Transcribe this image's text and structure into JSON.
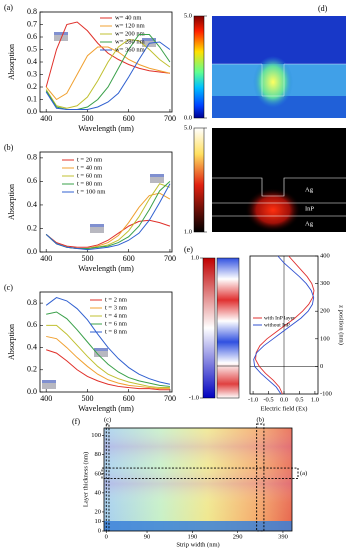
{
  "chart_data": [
    {
      "type": "line",
      "panel_label": "(a)",
      "x_label": "Wavelength (nm)",
      "y_label": "Absorption",
      "x": [
        400,
        425,
        450,
        475,
        500,
        525,
        550,
        575,
        600,
        625,
        650,
        675,
        700
      ],
      "xlim": [
        385,
        705
      ],
      "xticks": [
        400,
        500,
        600,
        700
      ],
      "ylim": [
        0,
        0.8
      ],
      "yticks": [
        {
          "value": 0,
          "label": "0.0"
        },
        0.1,
        0.2,
        0.3,
        0.4,
        0.5,
        0.6,
        0.7,
        0.8
      ],
      "series": [
        {
          "name": "w= 40 nm",
          "color": "#e0302a",
          "values": [
            0.2,
            0.5,
            0.7,
            0.72,
            0.65,
            0.55,
            0.47,
            0.42,
            0.38,
            0.35,
            0.33,
            0.32,
            0.31
          ]
        },
        {
          "name": "w= 120 nm",
          "color": "#f0a030",
          "values": [
            0.2,
            0.1,
            0.15,
            0.3,
            0.45,
            0.52,
            0.52,
            0.48,
            0.42,
            0.38,
            0.35,
            0.33,
            0.31
          ]
        },
        {
          "name": "w= 200 nm",
          "color": "#c0c030",
          "values": [
            0.18,
            0.05,
            0.03,
            0.05,
            0.12,
            0.25,
            0.4,
            0.52,
            0.58,
            0.57,
            0.5,
            0.42,
            0.36
          ]
        },
        {
          "name": "w= 280 nm",
          "color": "#3aa04a",
          "values": [
            0.17,
            0.04,
            0.02,
            0.02,
            0.04,
            0.1,
            0.2,
            0.35,
            0.5,
            0.62,
            0.62,
            0.52,
            0.4
          ]
        },
        {
          "name": "w= 360 nm",
          "color": "#3060d0",
          "values": [
            0.16,
            0.03,
            0.02,
            0.02,
            0.02,
            0.04,
            0.08,
            0.15,
            0.28,
            0.42,
            0.55,
            0.56,
            0.5
          ]
        }
      ]
    },
    {
      "type": "line",
      "panel_label": "(b)",
      "x_label": "Wavelength (nm)",
      "y_label": "Absorption",
      "x": [
        400,
        425,
        450,
        475,
        500,
        525,
        550,
        575,
        600,
        625,
        650,
        675,
        700
      ],
      "xlim": [
        385,
        705
      ],
      "xticks": [
        400,
        500,
        600,
        700
      ],
      "ylim": [
        0,
        0.85
      ],
      "yticks": [
        {
          "value": 0,
          "label": "0.0"
        },
        0.2,
        0.4,
        0.6,
        0.8
      ],
      "series": [
        {
          "name": "t = 20 nm",
          "color": "#e0302a",
          "values": [
            0.15,
            0.08,
            0.05,
            0.04,
            0.04,
            0.06,
            0.1,
            0.16,
            0.22,
            0.26,
            0.27,
            0.25,
            0.22
          ]
        },
        {
          "name": "t = 40 nm",
          "color": "#f0a030",
          "values": [
            0.15,
            0.07,
            0.04,
            0.03,
            0.03,
            0.05,
            0.08,
            0.14,
            0.25,
            0.38,
            0.48,
            0.5,
            0.45
          ]
        },
        {
          "name": "t = 60 nm",
          "color": "#c0c030",
          "values": [
            0.15,
            0.07,
            0.04,
            0.03,
            0.03,
            0.04,
            0.06,
            0.1,
            0.18,
            0.3,
            0.45,
            0.58,
            0.55
          ]
        },
        {
          "name": "t = 80 nm",
          "color": "#3aa04a",
          "values": [
            0.15,
            0.07,
            0.04,
            0.03,
            0.03,
            0.04,
            0.05,
            0.08,
            0.13,
            0.22,
            0.36,
            0.52,
            0.6
          ]
        },
        {
          "name": "t = 100 nm",
          "color": "#3060d0",
          "values": [
            0.15,
            0.07,
            0.04,
            0.03,
            0.02,
            0.03,
            0.04,
            0.06,
            0.1,
            0.16,
            0.27,
            0.42,
            0.58
          ]
        }
      ]
    },
    {
      "type": "line",
      "panel_label": "(c)",
      "x_label": "Wavelength (nm)",
      "y_label": "Absorption",
      "x": [
        400,
        425,
        450,
        475,
        500,
        525,
        550,
        575,
        600,
        625,
        650,
        675,
        700
      ],
      "xlim": [
        385,
        705
      ],
      "xticks": [
        400,
        500,
        600,
        700
      ],
      "ylim": [
        0,
        0.9
      ],
      "yticks": [
        {
          "value": 0,
          "label": "0.0"
        },
        0.2,
        0.4,
        0.6,
        0.8
      ],
      "series": [
        {
          "name": "t = 2 nm",
          "color": "#e0302a",
          "values": [
            0.38,
            0.35,
            0.28,
            0.2,
            0.14,
            0.1,
            0.07,
            0.05,
            0.04,
            0.03,
            0.03,
            0.02,
            0.02
          ]
        },
        {
          "name": "t = 3 nm",
          "color": "#f0a030",
          "values": [
            0.5,
            0.48,
            0.4,
            0.31,
            0.23,
            0.16,
            0.11,
            0.08,
            0.06,
            0.05,
            0.04,
            0.03,
            0.03
          ]
        },
        {
          "name": "t = 4 nm",
          "color": "#c0c030",
          "values": [
            0.6,
            0.6,
            0.52,
            0.42,
            0.32,
            0.23,
            0.16,
            0.12,
            0.09,
            0.07,
            0.05,
            0.04,
            0.04
          ]
        },
        {
          "name": "t = 6 nm",
          "color": "#3aa04a",
          "values": [
            0.7,
            0.72,
            0.66,
            0.56,
            0.45,
            0.34,
            0.25,
            0.18,
            0.13,
            0.1,
            0.08,
            0.06,
            0.05
          ]
        },
        {
          "name": "t = 8 nm",
          "color": "#3060d0",
          "values": [
            0.78,
            0.85,
            0.82,
            0.75,
            0.65,
            0.52,
            0.4,
            0.3,
            0.22,
            0.16,
            0.12,
            0.09,
            0.07
          ]
        }
      ]
    },
    {
      "type": "field_map",
      "panel_label": "(d)",
      "colorbars": [
        {
          "clim": [
            0,
            5
          ],
          "cticks": [
            {
              "value": 5,
              "label": "5.0"
            },
            {
              "value": 0,
              "label": "0.0"
            }
          ]
        },
        {
          "clim": [
            1,
            5
          ],
          "cticks": [
            {
              "value": 5,
              "label": "5.0"
            },
            {
              "value": 1,
              "label": "1.0"
            }
          ]
        }
      ],
      "layer_labels": [
        "Ag",
        "InP",
        "Ag"
      ]
    },
    {
      "type": "field_profile",
      "panel_label": "(e)",
      "clim": [
        -1,
        1
      ],
      "cticks": [
        {
          "value": 1,
          "label": "1.0"
        },
        {
          "value": -1,
          "label": "-1.0"
        }
      ],
      "x_label": "Electric field (Ex)",
      "y_label": "z position (nm)",
      "xlim": [
        -1.1,
        1.1
      ],
      "xticks": [
        {
          "value": -1,
          "label": "-1.0"
        },
        -0.5,
        {
          "value": 0,
          "label": "0.0"
        },
        0.5,
        {
          "value": 1,
          "label": "1.0"
        }
      ],
      "ylim": [
        -100,
        400
      ],
      "yticks": [
        -100,
        0,
        100,
        200,
        300,
        400
      ],
      "z": [
        -100,
        -75,
        -50,
        -25,
        0,
        25,
        50,
        75,
        100,
        125,
        150,
        175,
        200,
        225,
        250,
        275,
        300,
        325,
        350,
        375,
        400
      ],
      "series": [
        {
          "name": "with InP layer",
          "color": "#e03030",
          "values": [
            -0.05,
            -0.15,
            -0.35,
            -0.6,
            -0.8,
            -0.92,
            -0.9,
            -0.78,
            -0.55,
            -0.25,
            0.05,
            0.35,
            0.6,
            0.8,
            0.93,
            0.97,
            0.9,
            0.75,
            0.55,
            0.35,
            0.15
          ]
        },
        {
          "name": "without InP",
          "color": "#3050d0",
          "values": [
            -0.1,
            -0.25,
            -0.5,
            -0.75,
            -0.95,
            -0.98,
            -0.88,
            -0.65,
            -0.35,
            -0.05,
            0.25,
            0.55,
            0.78,
            0.92,
            0.96,
            0.88,
            0.72,
            0.5,
            0.25,
            0.0,
            -0.2
          ]
        }
      ]
    },
    {
      "type": "sweep_map",
      "panel_label": "(f)",
      "x_label": "Strip width (nm)",
      "y_label": "Layer thickness (nm)",
      "xlim": [
        -5,
        410
      ],
      "xticks": [
        0,
        90,
        190,
        290,
        390
      ],
      "ylim": [
        0,
        108
      ],
      "yticks": [
        0,
        10,
        20,
        40,
        60,
        80,
        100
      ],
      "annotations": [
        "(c)",
        "(b)",
        "(a)"
      ]
    }
  ]
}
